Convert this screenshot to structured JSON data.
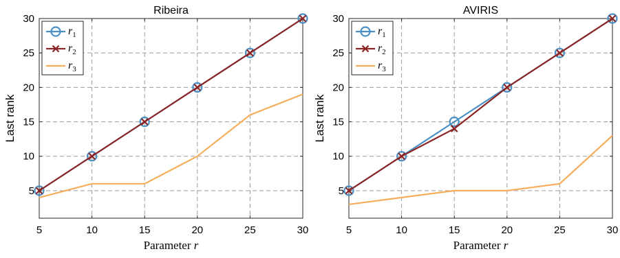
{
  "chart_data": [
    {
      "type": "line",
      "title": "Ribeira",
      "xlabel": "Parameter r",
      "ylabel": "Last rank",
      "x": [
        5,
        10,
        15,
        20,
        25,
        30
      ],
      "xlim": [
        5,
        30
      ],
      "ylim": [
        1,
        30
      ],
      "xticks": [
        "5",
        "10",
        "15",
        "20",
        "25",
        "30"
      ],
      "yticks": [
        "5",
        "10",
        "15",
        "20",
        "25",
        "30"
      ],
      "grid": true,
      "legend_position": "top-left",
      "series": [
        {
          "name": "r1",
          "color": "#4a8fc4",
          "marker": "circle",
          "values": [
            5,
            10,
            15,
            20,
            25,
            30
          ]
        },
        {
          "name": "r2",
          "color": "#8b2525",
          "marker": "x",
          "values": [
            5,
            10,
            15,
            20,
            25,
            30
          ]
        },
        {
          "name": "r3",
          "color": "#f5ad59",
          "marker": "none",
          "values": [
            4,
            6,
            6,
            10,
            16,
            19
          ]
        }
      ]
    },
    {
      "type": "line",
      "title": "AVIRIS",
      "xlabel": "Parameter r",
      "ylabel": "Last rank",
      "x": [
        5,
        10,
        15,
        20,
        25,
        30
      ],
      "xlim": [
        5,
        30
      ],
      "ylim": [
        1,
        30
      ],
      "xticks": [
        "5",
        "10",
        "15",
        "20",
        "25",
        "30"
      ],
      "yticks": [
        "5",
        "10",
        "15",
        "20",
        "25",
        "30"
      ],
      "grid": true,
      "legend_position": "top-left",
      "series": [
        {
          "name": "r1",
          "color": "#4a8fc4",
          "marker": "circle",
          "values": [
            5,
            10,
            15,
            20,
            25,
            30
          ]
        },
        {
          "name": "r2",
          "color": "#8b2525",
          "marker": "x",
          "values": [
            5,
            10,
            14,
            20,
            25,
            30
          ]
        },
        {
          "name": "r3",
          "color": "#f5ad59",
          "marker": "none",
          "values": [
            3,
            4,
            5,
            5,
            6,
            13
          ]
        }
      ]
    }
  ]
}
